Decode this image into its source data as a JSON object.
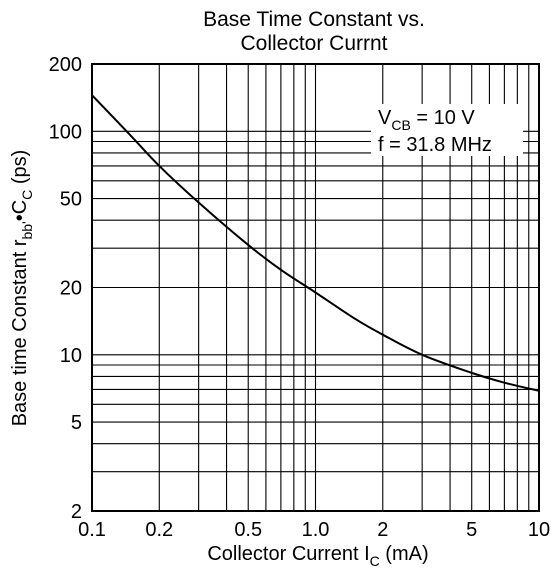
{
  "chart_data": {
    "type": "line",
    "title_line1": "Base Time Constant vs.",
    "title_line2": "Collector Currnt",
    "xlabel": {
      "main": "Collector Current  I",
      "sub": "C",
      "unit": "  (mA)"
    },
    "ylabel": {
      "main": "Base time Constant  r",
      "sub1": "bb'",
      "mid": "•C",
      "sub2": "C",
      "unit": "  (ps)"
    },
    "x_scale": "log",
    "y_scale": "log",
    "xlim": [
      0.1,
      10
    ],
    "ylim": [
      2,
      200
    ],
    "x_ticks": [
      {
        "value": 0.1,
        "label": "0.1"
      },
      {
        "value": 0.2,
        "label": "0.2"
      },
      {
        "value": 0.5,
        "label": "0.5"
      },
      {
        "value": 1,
        "label": "1.0"
      },
      {
        "value": 2,
        "label": "2"
      },
      {
        "value": 5,
        "label": "5"
      },
      {
        "value": 10,
        "label": "10"
      }
    ],
    "y_ticks": [
      {
        "value": 2,
        "label": "2"
      },
      {
        "value": 5,
        "label": "5"
      },
      {
        "value": 10,
        "label": "10"
      },
      {
        "value": 20,
        "label": "20"
      },
      {
        "value": 50,
        "label": "50"
      },
      {
        "value": 100,
        "label": "100"
      },
      {
        "value": 200,
        "label": "200"
      }
    ],
    "grid": true,
    "x_grid": [
      0.1,
      0.2,
      0.3,
      0.4,
      0.5,
      0.6,
      0.7,
      0.8,
      0.9,
      1,
      2,
      3,
      4,
      5,
      6,
      7,
      8,
      9,
      10
    ],
    "y_grid": [
      2,
      3,
      4,
      5,
      6,
      7,
      8,
      9,
      10,
      20,
      30,
      40,
      50,
      60,
      70,
      80,
      90,
      100,
      200
    ],
    "annotation": {
      "line1_main": "V",
      "line1_sub": "CB",
      "line1_rest": " = 10 V",
      "line2": "f = 31.8 MHz"
    },
    "series": [
      {
        "x": [
          0.1,
          0.15,
          0.2,
          0.3,
          0.5,
          0.7,
          1.0,
          1.5,
          2.0,
          3.0,
          5.0,
          7.0,
          10.0
        ],
        "y": [
          145,
          95,
          70,
          48,
          31,
          24,
          19,
          14.5,
          12.3,
          10.0,
          8.3,
          7.5,
          6.9
        ]
      }
    ]
  }
}
